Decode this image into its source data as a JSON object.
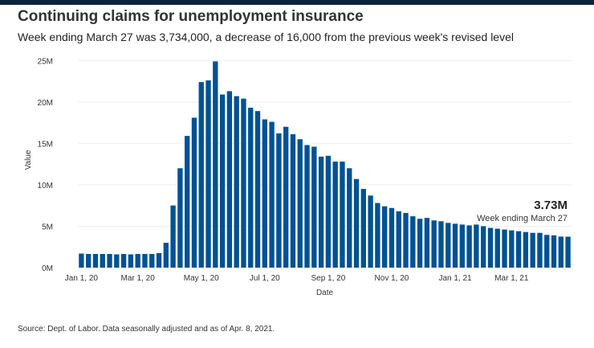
{
  "header": {
    "title": "Continuing claims for unemployment insurance",
    "subtitle": "Week ending March 27 was 3,734,000, a decrease of 16,000 from the previous week's revised level"
  },
  "footer": {
    "source": "Source: Dept. of Labor. Data seasonally adjusted and as of Apr. 8, 2021."
  },
  "colors": {
    "bar": "#005293",
    "topbar": "#0c2340",
    "grid": "#eeeeee"
  },
  "chart_data": {
    "type": "bar",
    "xlabel": "Date",
    "ylabel": "Value",
    "ylim": [
      0,
      26000000
    ],
    "y_ticks": [
      {
        "value": 0,
        "label": "0M"
      },
      {
        "value": 5000000,
        "label": "5M"
      },
      {
        "value": 10000000,
        "label": "10M"
      },
      {
        "value": 15000000,
        "label": "15M"
      },
      {
        "value": 20000000,
        "label": "20M"
      },
      {
        "value": 25000000,
        "label": "25M"
      }
    ],
    "x_ticks": [
      {
        "index": 0,
        "label": "Jan 1, 20"
      },
      {
        "index": 8,
        "label": "Mar 1, 20"
      },
      {
        "index": 17,
        "label": "May 1, 20"
      },
      {
        "index": 26,
        "label": "Jul 1, 20"
      },
      {
        "index": 35,
        "label": "Sep 1, 20"
      },
      {
        "index": 44,
        "label": "Nov 1, 20"
      },
      {
        "index": 53,
        "label": "Jan 1, 21"
      },
      {
        "index": 61,
        "label": "Mar 1, 21"
      }
    ],
    "values": [
      1700000,
      1650000,
      1650000,
      1650000,
      1650000,
      1600000,
      1650000,
      1600000,
      1650000,
      1650000,
      1650000,
      1750000,
      3000000,
      7500000,
      12000000,
      15900000,
      18100000,
      22400000,
      22600000,
      24900000,
      20900000,
      21300000,
      20700000,
      20400000,
      19300000,
      18900000,
      17900000,
      17600000,
      16200000,
      17000000,
      16100000,
      15500000,
      14800000,
      14600000,
      13400000,
      13500000,
      12800000,
      12800000,
      12000000,
      10700000,
      9500000,
      8700000,
      7800000,
      7400000,
      7200000,
      6800000,
      6600000,
      6200000,
      5900000,
      6000000,
      5700000,
      5600000,
      5400000,
      5300000,
      5200000,
      5100000,
      5200000,
      5000000,
      4800000,
      4700000,
      4600000,
      4500000,
      4400000,
      4300000,
      4200000,
      4200000,
      3950000,
      3900000,
      3750000,
      3734000
    ],
    "annotation": {
      "value_label": "3.73M",
      "text": "Week ending March 27"
    }
  }
}
